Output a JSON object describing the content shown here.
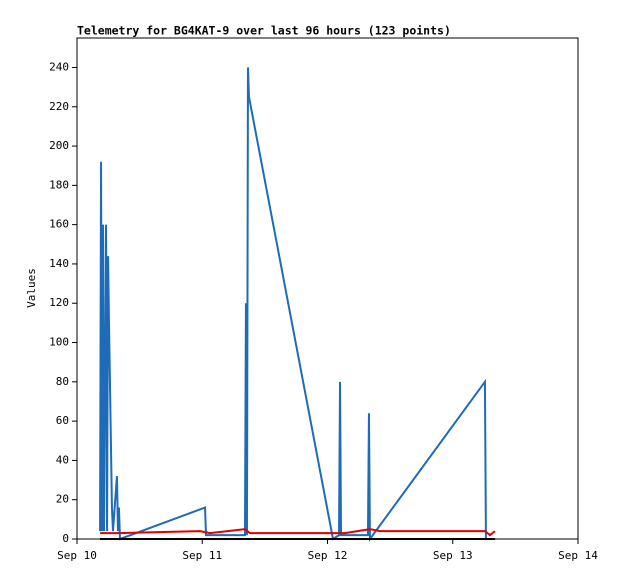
{
  "chart_data": {
    "type": "line",
    "title": "Telemetry for BG4KAT-9 over last 96 hours (123 points)",
    "y_label": "Values",
    "xlim": [
      0,
      4
    ],
    "xticks": [
      {
        "value": 0,
        "label": "Sep 10"
      },
      {
        "value": 1,
        "label": "Sep 11"
      },
      {
        "value": 2,
        "label": "Sep 12"
      },
      {
        "value": 3,
        "label": "Sep 13"
      },
      {
        "value": 4,
        "label": "Sep 14"
      }
    ],
    "ylim": [
      0,
      255
    ],
    "yticks": [
      0,
      20,
      40,
      60,
      80,
      100,
      120,
      140,
      160,
      180,
      200,
      220,
      240
    ],
    "grid": false,
    "series": [
      {
        "color": "#000000",
        "x": [
          0.184,
          3.337
        ],
        "values": [
          0,
          0
        ]
      },
      {
        "color": "#e00000",
        "x": [
          0.184,
          0.343,
          0.982,
          1.062,
          1.341,
          1.381,
          2.02,
          2.14,
          2.339,
          2.419,
          3.257,
          3.297,
          3.337
        ],
        "values": [
          3,
          3,
          4,
          3,
          5,
          3,
          3,
          3,
          5,
          4,
          4,
          2,
          4
        ]
      },
      {
        "color": "#1e6bb8",
        "x": [
          0.184,
          0.192,
          0.2,
          0.208,
          0.216,
          0.232,
          0.24,
          0.248,
          0.255,
          0.263,
          0.271,
          0.279,
          0.287,
          0.319,
          0.327,
          0.335,
          0.343,
          1.022,
          1.03,
          1.341,
          1.349,
          1.357,
          1.365,
          1.373,
          2.044,
          2.092,
          2.1,
          2.108,
          2.323,
          2.331,
          2.339,
          3.257,
          3.265
        ],
        "values": [
          4,
          192,
          4,
          160,
          4,
          160,
          4,
          144,
          112,
          80,
          48,
          16,
          4,
          32,
          4,
          16,
          0,
          16,
          2,
          2,
          120,
          2,
          240,
          225,
          0,
          2,
          80,
          2,
          2,
          64,
          0,
          80,
          0
        ]
      }
    ]
  }
}
